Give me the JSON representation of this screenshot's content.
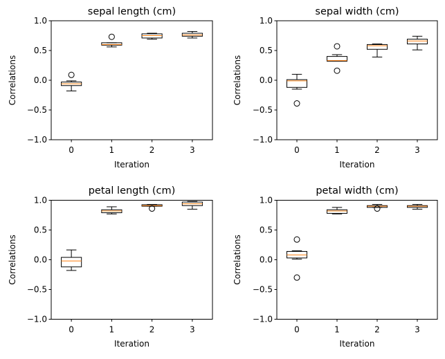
{
  "figure": {
    "background": "#ffffff",
    "box_color": "#000000",
    "median_color": "#ff7f0e",
    "flier_color": "#000000"
  },
  "chart_data": [
    {
      "type": "boxplot",
      "title": "sepal length (cm)",
      "xlabel": "Iteration",
      "ylabel": "Correlations",
      "ylim": [
        -1.0,
        1.0
      ],
      "xlim": [
        -0.5,
        3.5
      ],
      "yticks": [
        -1.0,
        -0.5,
        0.0,
        0.5,
        1.0
      ],
      "ytick_labels": [
        "−1.0",
        "−0.5",
        "0.0",
        "0.5",
        "1.0"
      ],
      "xticks": [
        0,
        1,
        2,
        3
      ],
      "xtick_labels": [
        "0",
        "1",
        "2",
        "3"
      ],
      "grid": false,
      "legend": "none",
      "boxes": [
        {
          "x": 0,
          "whislo": -0.18,
          "q1": -0.09,
          "med": -0.06,
          "q3": -0.03,
          "whishi": -0.01,
          "fliers": [
            0.09
          ]
        },
        {
          "x": 1,
          "whislo": 0.56,
          "q1": 0.59,
          "med": 0.6,
          "q3": 0.63,
          "whishi": 0.63,
          "fliers": [
            0.73
          ]
        },
        {
          "x": 2,
          "whislo": 0.69,
          "q1": 0.71,
          "med": 0.75,
          "q3": 0.78,
          "whishi": 0.79,
          "fliers": []
        },
        {
          "x": 3,
          "whislo": 0.71,
          "q1": 0.74,
          "med": 0.76,
          "q3": 0.79,
          "whishi": 0.82,
          "fliers": []
        }
      ]
    },
    {
      "type": "boxplot",
      "title": "sepal width (cm)",
      "xlabel": "Iteration",
      "ylabel": "Correlations",
      "ylim": [
        -1.0,
        1.0
      ],
      "xlim": [
        -0.5,
        3.5
      ],
      "yticks": [
        -1.0,
        -0.5,
        0.0,
        0.5,
        1.0
      ],
      "ytick_labels": [
        "−1.0",
        "−0.5",
        "0.0",
        "0.5",
        "1.0"
      ],
      "xticks": [
        0,
        1,
        2,
        3
      ],
      "xtick_labels": [
        "0",
        "1",
        "2",
        "3"
      ],
      "grid": false,
      "legend": "none",
      "boxes": [
        {
          "x": 0,
          "whislo": -0.15,
          "q1": -0.12,
          "med": -0.01,
          "q3": 0.01,
          "whishi": 0.1,
          "fliers": [
            -0.39
          ]
        },
        {
          "x": 1,
          "whislo": 0.32,
          "q1": 0.32,
          "med": 0.33,
          "q3": 0.4,
          "whishi": 0.43,
          "fliers": [
            0.57,
            0.16
          ]
        },
        {
          "x": 2,
          "whislo": 0.39,
          "q1": 0.52,
          "med": 0.58,
          "q3": 0.6,
          "whishi": 0.61,
          "fliers": []
        },
        {
          "x": 3,
          "whislo": 0.51,
          "q1": 0.61,
          "med": 0.66,
          "q3": 0.69,
          "whishi": 0.74,
          "fliers": []
        }
      ]
    },
    {
      "type": "boxplot",
      "title": "petal length (cm)",
      "xlabel": "Iteration",
      "ylabel": "Correlations",
      "ylim": [
        -1.0,
        1.0
      ],
      "xlim": [
        -0.5,
        3.5
      ],
      "yticks": [
        -1.0,
        -0.5,
        0.0,
        0.5,
        1.0
      ],
      "ytick_labels": [
        "−1.0",
        "−0.5",
        "0.0",
        "0.5",
        "1.0"
      ],
      "xticks": [
        0,
        1,
        2,
        3
      ],
      "xtick_labels": [
        "0",
        "1",
        "2",
        "3"
      ],
      "grid": false,
      "legend": "none",
      "boxes": [
        {
          "x": 0,
          "whislo": -0.18,
          "q1": -0.12,
          "med": -0.02,
          "q3": 0.04,
          "whishi": 0.165,
          "fliers": []
        },
        {
          "x": 1,
          "whislo": 0.77,
          "q1": 0.79,
          "med": 0.82,
          "q3": 0.84,
          "whishi": 0.89,
          "fliers": []
        },
        {
          "x": 2,
          "whislo": 0.9,
          "q1": 0.9,
          "med": 0.91,
          "q3": 0.925,
          "whishi": 0.93,
          "fliers": [
            0.86
          ]
        },
        {
          "x": 3,
          "whislo": 0.85,
          "q1": 0.91,
          "med": 0.94,
          "q3": 0.97,
          "whishi": 0.98,
          "fliers": []
        }
      ]
    },
    {
      "type": "boxplot",
      "title": "petal width (cm)",
      "xlabel": "Iteration",
      "ylabel": "Correlations",
      "ylim": [
        -1.0,
        1.0
      ],
      "xlim": [
        -0.5,
        3.5
      ],
      "yticks": [
        -1.0,
        -0.5,
        0.0,
        0.5,
        1.0
      ],
      "ytick_labels": [
        "−1.0",
        "−0.5",
        "0.0",
        "0.5",
        "1.0"
      ],
      "xticks": [
        0,
        1,
        2,
        3
      ],
      "xtick_labels": [
        "0",
        "1",
        "2",
        "3"
      ],
      "grid": false,
      "legend": "none",
      "boxes": [
        {
          "x": 0,
          "whislo": 0.01,
          "q1": 0.03,
          "med": 0.08,
          "q3": 0.14,
          "whishi": 0.15,
          "fliers": [
            0.34,
            -0.3
          ]
        },
        {
          "x": 1,
          "whislo": 0.77,
          "q1": 0.78,
          "med": 0.82,
          "q3": 0.84,
          "whishi": 0.88,
          "fliers": []
        },
        {
          "x": 2,
          "whislo": 0.88,
          "q1": 0.88,
          "med": 0.9,
          "q3": 0.91,
          "whishi": 0.93,
          "fliers": [
            0.86
          ]
        },
        {
          "x": 3,
          "whislo": 0.85,
          "q1": 0.88,
          "med": 0.9,
          "q3": 0.91,
          "whishi": 0.93,
          "fliers": []
        }
      ]
    }
  ]
}
